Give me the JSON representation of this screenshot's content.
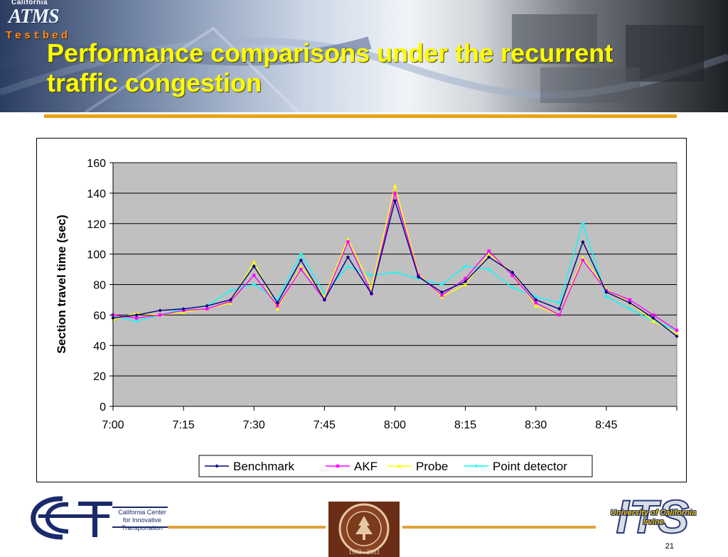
{
  "header": {
    "title": "Performance comparisons under the recurrent traffic congestion",
    "logo_california": "California",
    "logo_atms": "ATMS",
    "logo_testbed": "Testbed"
  },
  "colors": {
    "title": "#ffff00",
    "accent_line": "#e8a21a",
    "plot_background": "#c0c0c0"
  },
  "chart_data": {
    "type": "line",
    "title": "",
    "xlabel": "",
    "ylabel": "Section travel time (sec)",
    "xlim": [
      "7:00",
      "9:00"
    ],
    "ylim": [
      0,
      160
    ],
    "yticks": [
      0,
      20,
      40,
      60,
      80,
      100,
      120,
      140,
      160
    ],
    "xticks": [
      "7:00",
      "7:15",
      "7:30",
      "7:45",
      "8:00",
      "8:15",
      "8:30",
      "8:45"
    ],
    "grid": true,
    "legend": "bottom",
    "x": [
      "7:00",
      "7:05",
      "7:10",
      "7:15",
      "7:20",
      "7:25",
      "7:30",
      "7:35",
      "7:40",
      "7:45",
      "7:50",
      "7:55",
      "8:00",
      "8:05",
      "8:10",
      "8:15",
      "8:20",
      "8:25",
      "8:30",
      "8:35",
      "8:40",
      "8:45",
      "8:50",
      "8:55",
      "9:00"
    ],
    "series": [
      {
        "name": "Benchmark",
        "color": "#000080",
        "marker": "diamond",
        "values": [
          58,
          60,
          63,
          64,
          66,
          70,
          92,
          68,
          96,
          70,
          98,
          74,
          135,
          85,
          75,
          82,
          98,
          88,
          70,
          64,
          108,
          75,
          68,
          58,
          46
        ]
      },
      {
        "name": "AKF",
        "color": "#ff00ff",
        "marker": "square",
        "values": [
          60,
          58,
          60,
          63,
          64,
          69,
          86,
          66,
          90,
          70,
          108,
          74,
          140,
          86,
          73,
          84,
          102,
          86,
          68,
          60,
          96,
          76,
          70,
          60,
          50
        ]
      },
      {
        "name": "Probe",
        "color": "#ffff00",
        "marker": "triangle",
        "values": [
          57,
          61,
          60,
          62,
          64,
          68,
          95,
          64,
          92,
          72,
          110,
          78,
          145,
          87,
          72,
          80,
          100,
          88,
          66,
          60,
          98,
          77,
          68,
          56,
          48
        ]
      },
      {
        "name": "Point detector",
        "color": "#00ffff",
        "marker": "star",
        "values": [
          59,
          56,
          60,
          64,
          66,
          76,
          80,
          70,
          100,
          74,
          92,
          86,
          88,
          84,
          80,
          92,
          90,
          78,
          72,
          68,
          120,
          72,
          64,
          56,
          50
        ]
      }
    ]
  },
  "footer": {
    "cci_lines": [
      "California Center",
      "for Innovative",
      "Transportation"
    ],
    "seal_years": "1903 · 2003",
    "its_line1": "University of California",
    "its_line2": "Irvine",
    "its_big": "ITS",
    "page_number": "21"
  }
}
